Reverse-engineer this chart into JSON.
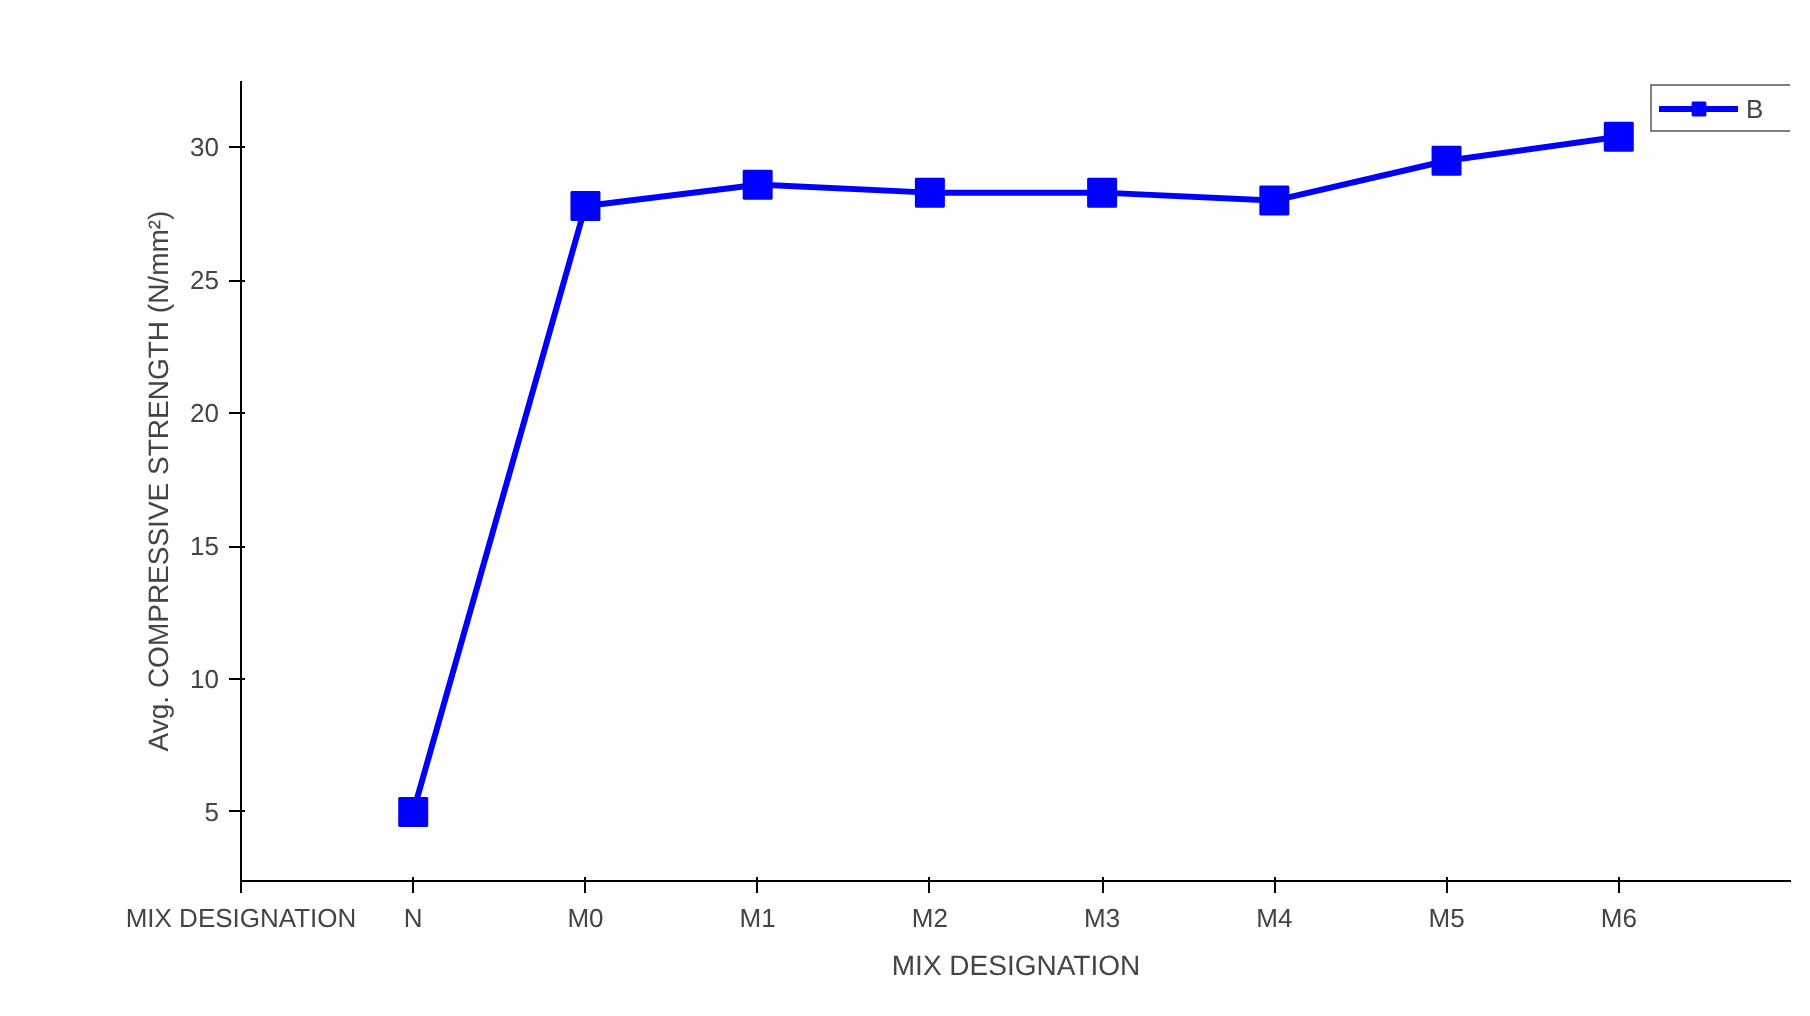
{
  "chart_data": {
    "type": "line",
    "xlabel": "MIX DESIGNATION",
    "ylabel": "Avg. COMPRESSIVE STRENGTH (N/mm²)",
    "categories": [
      "MIX DESIGNATION",
      "N",
      "M0",
      "M1",
      "M2",
      "M3",
      "M4",
      "M5",
      "M6"
    ],
    "series": [
      {
        "name": "B",
        "color": "#0000ff",
        "values": [
          null,
          5.0,
          27.8,
          28.6,
          28.3,
          28.3,
          28.0,
          29.5,
          30.4
        ]
      }
    ],
    "ylim": [
      2.4,
      32.5
    ],
    "yticks": [
      5,
      10,
      15,
      20,
      25,
      30
    ],
    "grid": false,
    "legend": "top right",
    "marker": "square",
    "line_style": "solid"
  }
}
